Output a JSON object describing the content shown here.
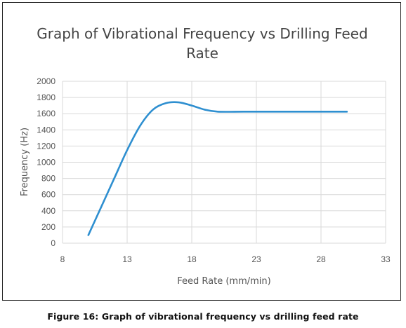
{
  "chart_data": {
    "type": "line",
    "title_lines": [
      "Graph of Vibrational Frequency vs Drilling Feed",
      "Rate"
    ],
    "xlabel": "Feed Rate (mm/min)",
    "ylabel": "Frequency (Hz)",
    "xlim": [
      8,
      33
    ],
    "ylim": [
      0,
      2000
    ],
    "x_ticks": [
      8,
      13,
      18,
      23,
      28,
      33
    ],
    "y_ticks": [
      0,
      200,
      400,
      600,
      800,
      1000,
      1200,
      1400,
      1600,
      1800,
      2000
    ],
    "grid": true,
    "legend": "none",
    "series": [
      {
        "color": "#2e8fd0",
        "x": [
          10,
          11,
          12,
          13,
          14,
          15,
          16,
          17,
          18,
          19,
          20,
          22,
          24,
          26,
          28,
          30
        ],
        "y": [
          100,
          450,
          800,
          1150,
          1450,
          1650,
          1730,
          1740,
          1700,
          1650,
          1625,
          1625,
          1625,
          1625,
          1625,
          1625
        ]
      }
    ]
  },
  "caption": "Figure 16: Graph of vibrational frequency vs drilling feed rate"
}
